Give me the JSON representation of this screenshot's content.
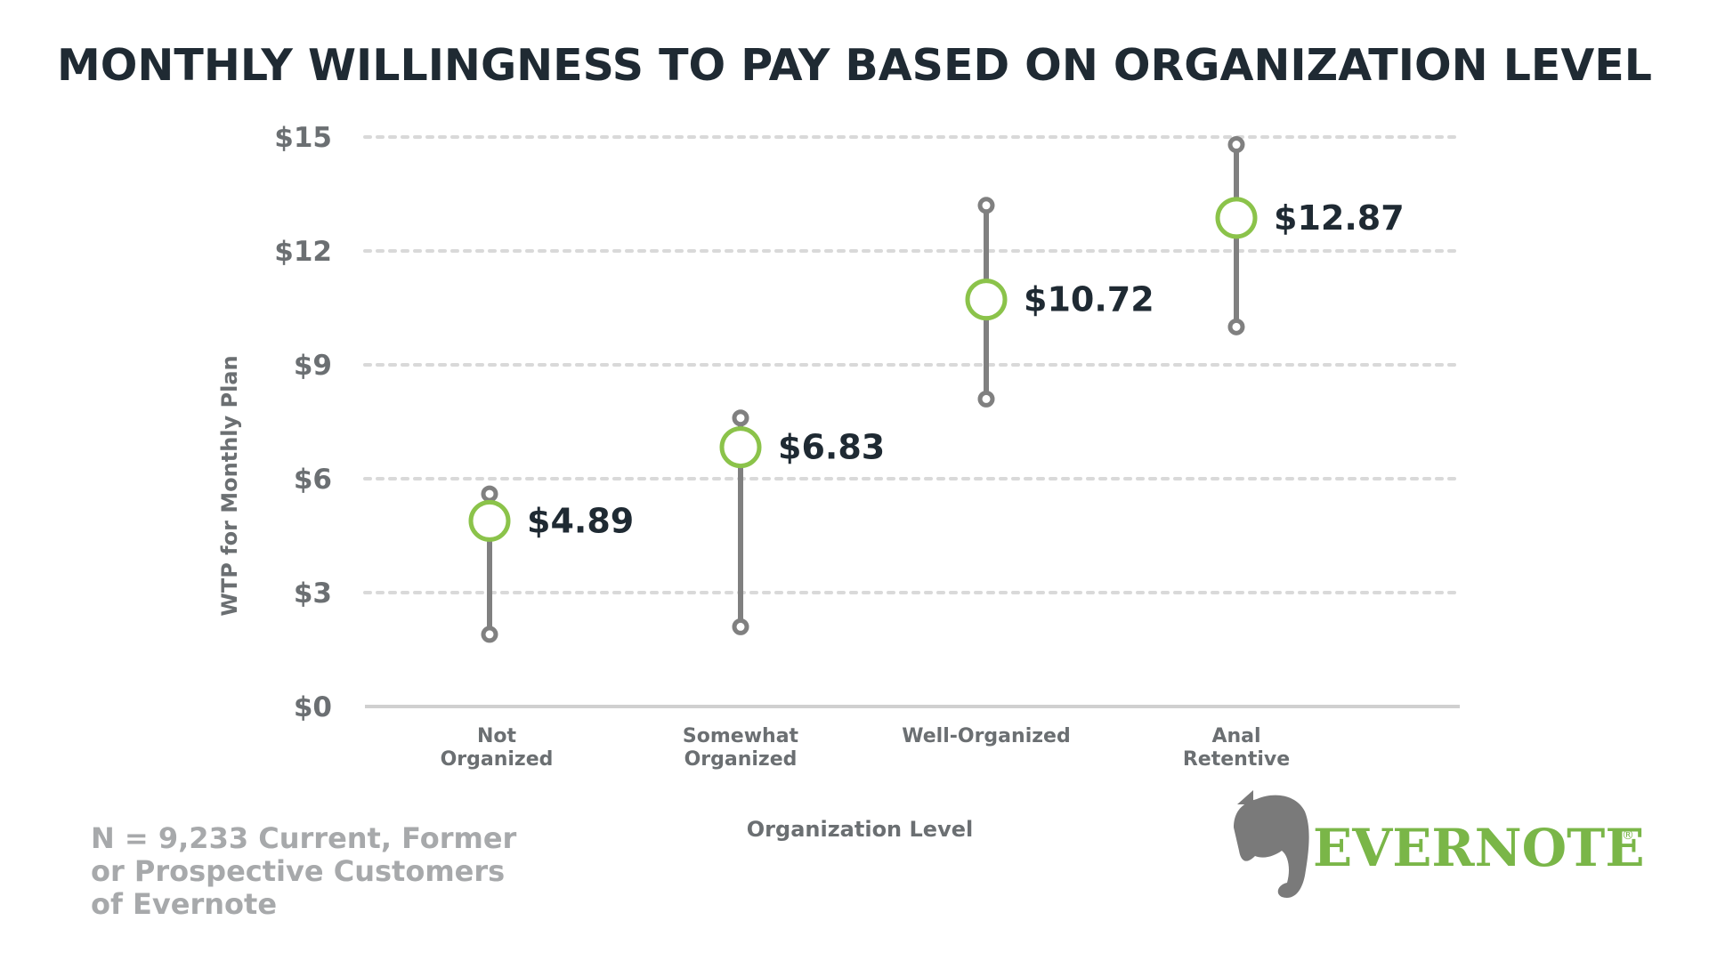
{
  "chart_data": {
    "type": "range",
    "title": "MONTHLY WILLINGNESS TO PAY BASED ON ORGANIZATION LEVEL",
    "xlabel": "Organization Level",
    "ylabel": "WTP for Monthly Plan",
    "ylim": [
      0,
      15
    ],
    "yticks": [
      0,
      3,
      6,
      9,
      12,
      15
    ],
    "ytick_labels": [
      "$0",
      "$3",
      "$6",
      "$9",
      "$12",
      "$15"
    ],
    "grid": true,
    "categories": [
      [
        "Not",
        "Organized"
      ],
      [
        "Somewhat",
        "Organized"
      ],
      [
        "Well-Organized"
      ],
      [
        "Anal",
        "Retentive"
      ]
    ],
    "values": [
      4.89,
      6.83,
      10.72,
      12.87
    ],
    "value_labels": [
      "$4.89",
      "$6.83",
      "$10.72",
      "$12.87"
    ],
    "low": [
      1.9,
      2.1,
      8.1,
      10.0
    ],
    "high": [
      5.6,
      7.6,
      13.2,
      14.8
    ]
  },
  "footnote": {
    "lines": [
      "N = 9,233 Current, Former",
      "or Prospective Customers",
      "of Evernote"
    ]
  },
  "brand": {
    "name": "EVERNOTE",
    "mark": "®"
  },
  "colors": {
    "title": "#1f2a33",
    "axis_text": "#6b6f72",
    "grid": "#d9d9d9",
    "baseline": "#d0d0d0",
    "range_line": "#808080",
    "mean_marker": "#8bc34a",
    "footnote": "#a7a9ab",
    "brand_green": "#7ab648",
    "brand_gray": "#7a7a7a"
  }
}
